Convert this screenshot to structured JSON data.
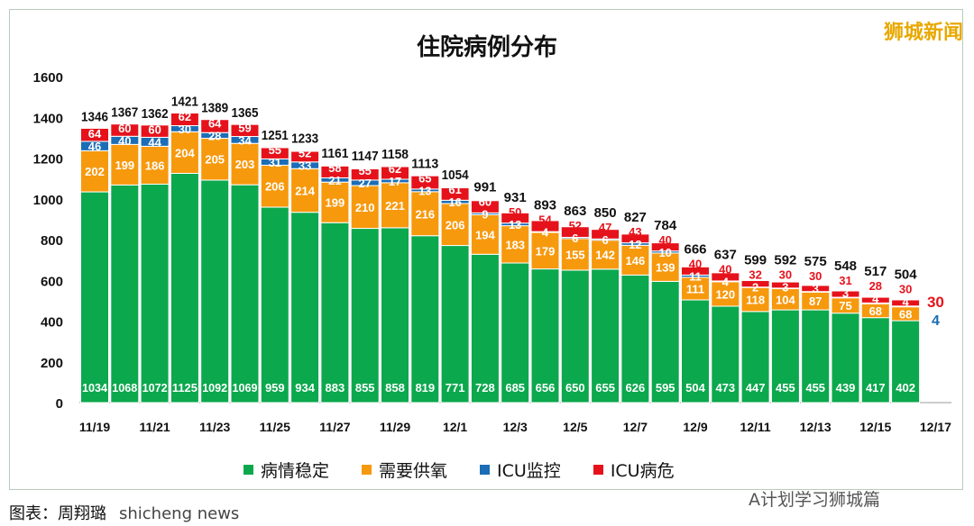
{
  "watermark": "狮城新闻",
  "watermark_bottom": "A计划学习狮城篇",
  "caption": "图表：周翔璐",
  "caption_overlay": "shicheng news",
  "chart_data": {
    "type": "bar",
    "stacked": true,
    "title": "住院病例分布",
    "xlabel": "",
    "ylabel": "",
    "ylim": [
      0,
      1600
    ],
    "yticks": [
      0,
      200,
      400,
      600,
      800,
      1000,
      1200,
      1400,
      1600
    ],
    "grid": false,
    "legend_position": "bottom",
    "categories": [
      "11/19",
      "11/20",
      "11/21",
      "11/22",
      "11/23",
      "11/24",
      "11/25",
      "11/26",
      "11/27",
      "11/28",
      "11/29",
      "11/30",
      "12/1",
      "12/2",
      "12/3",
      "12/4",
      "12/5",
      "12/6",
      "12/7",
      "12/8",
      "12/9",
      "12/10",
      "12/11",
      "12/12",
      "12/13",
      "12/14",
      "12/15",
      "12/16",
      "12/17"
    ],
    "xtick_labels": [
      "11/19",
      "11/21",
      "11/23",
      "11/25",
      "11/27",
      "11/29",
      "12/1",
      "12/3",
      "12/5",
      "12/7",
      "12/9",
      "12/11",
      "12/13",
      "12/15",
      "12/17"
    ],
    "series": [
      {
        "name": "病情稳定",
        "color": "#0ca84e",
        "values": [
          1034,
          1068,
          1072,
          1125,
          1092,
          1069,
          959,
          934,
          883,
          855,
          858,
          819,
          771,
          728,
          685,
          656,
          650,
          655,
          626,
          595,
          504,
          473,
          447,
          455,
          455,
          439,
          417,
          402,
          null
        ]
      },
      {
        "name": "需要供氧",
        "color": "#f7990d",
        "values": [
          202,
          199,
          186,
          204,
          205,
          203,
          206,
          214,
          199,
          210,
          221,
          216,
          206,
          194,
          183,
          179,
          155,
          142,
          146,
          139,
          111,
          120,
          118,
          104,
          87,
          75,
          68,
          68,
          null
        ]
      },
      {
        "name": "ICU监控",
        "color": "#1b6db5",
        "values": [
          46,
          40,
          44,
          30,
          28,
          34,
          31,
          33,
          21,
          27,
          17,
          13,
          16,
          9,
          13,
          4,
          6,
          6,
          12,
          10,
          11,
          4,
          2,
          3,
          3,
          3,
          4,
          4,
          null
        ]
      },
      {
        "name": "ICU病危",
        "color": "#e6121b",
        "values": [
          64,
          60,
          60,
          62,
          64,
          59,
          55,
          52,
          58,
          55,
          62,
          65,
          61,
          60,
          50,
          54,
          52,
          47,
          43,
          40,
          40,
          40,
          32,
          30,
          30,
          31,
          28,
          30,
          null
        ]
      }
    ],
    "totals": [
      1346,
      1367,
      1362,
      1421,
      1389,
      1365,
      1251,
      1233,
      1161,
      1147,
      1158,
      1113,
      1054,
      991,
      931,
      893,
      863,
      850,
      827,
      784,
      666,
      637,
      599,
      592,
      575,
      548,
      517,
      504,
      null
    ],
    "annotations": [
      {
        "text": "30",
        "color": "#e6121b"
      },
      {
        "text": "4",
        "color": "#1b6db5"
      }
    ]
  }
}
